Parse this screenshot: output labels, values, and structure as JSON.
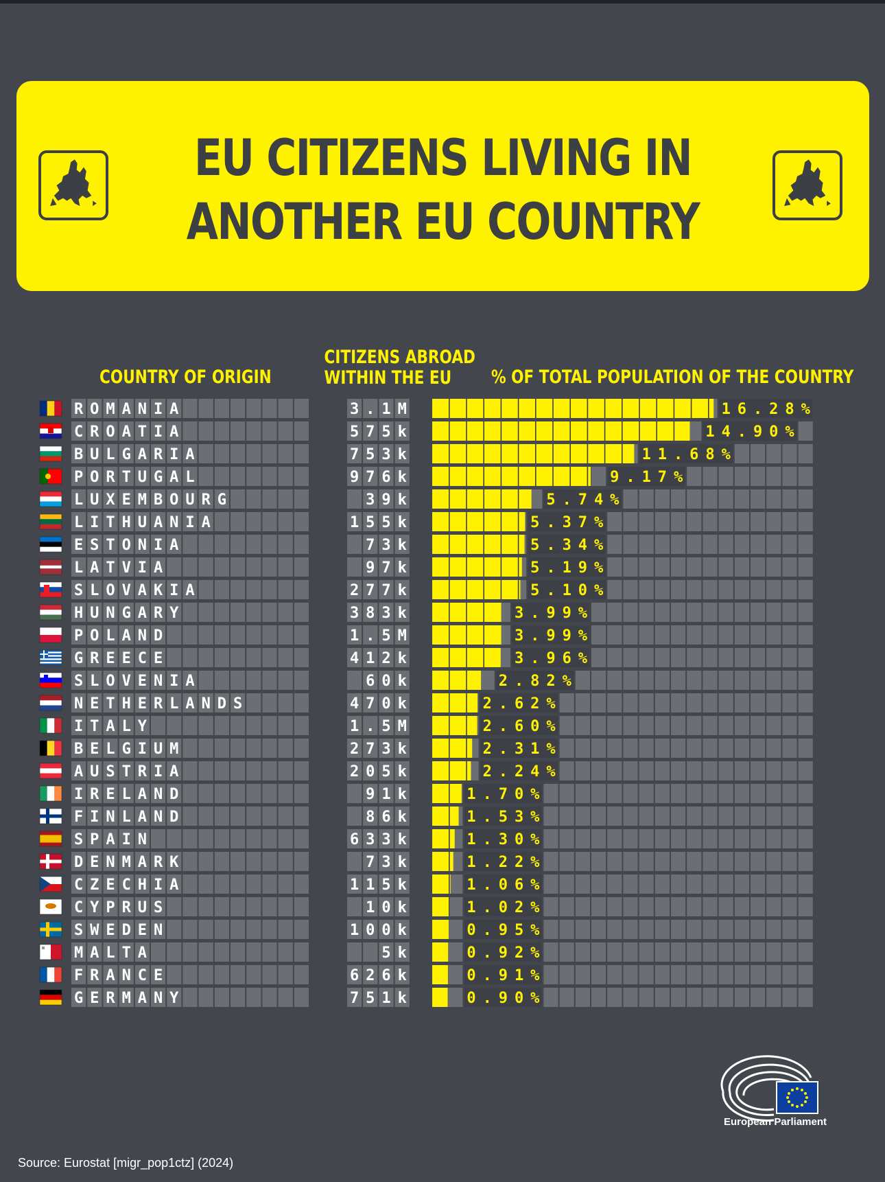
{
  "title": "EU CITIZENS LIVING IN ANOTHER EU COUNTRY",
  "headers": {
    "country": "COUNTRY OF ORIGIN",
    "citizens_line1": "CITIZENS ABROAD",
    "citizens_line2": "WITHIN THE EU",
    "percent": "% OF TOTAL POPULATION OF THE COUNTRY"
  },
  "source": "Source: Eurostat [migr_pop1ctz] (2024)",
  "logo_label": "European Parliament",
  "colors": {
    "background": "#43474d",
    "accent": "#fff200",
    "tile": "#6b6e73",
    "text_dark": "#3c3f44"
  },
  "chart_data": {
    "type": "bar",
    "orientation": "horizontal",
    "grid": true,
    "categories": [
      "ROMANIA",
      "CROATIA",
      "BULGARIA",
      "PORTUGAL",
      "LUXEMBOURG",
      "LITHUANIA",
      "ESTONIA",
      "LATVIA",
      "SLOVAKIA",
      "HUNGARY",
      "POLAND",
      "GREECE",
      "SLOVENIA",
      "NETHERLANDS",
      "ITALY",
      "BELGIUM",
      "AUSTRIA",
      "IRELAND",
      "FINLAND",
      "SPAIN",
      "DENMARK",
      "CZECHIA",
      "CYPRUS",
      "SWEDEN",
      "MALTA",
      "FRANCE",
      "GERMANY"
    ],
    "citizens_abroad": [
      "3.1M",
      "575k",
      "753k",
      "976k",
      "39k",
      "155k",
      "73k",
      "97k",
      "277k",
      "383k",
      "1.5M",
      "412k",
      "60k",
      "470k",
      "1.5M",
      "273k",
      "205k",
      "91k",
      "86k",
      "633k",
      "73k",
      "115k",
      "10k",
      "100k",
      "5k",
      "626k",
      "751k"
    ],
    "values": [
      16.28,
      14.9,
      11.68,
      9.17,
      5.74,
      5.37,
      5.34,
      5.19,
      5.1,
      3.99,
      3.99,
      3.96,
      2.82,
      2.62,
      2.6,
      2.31,
      2.24,
      1.7,
      1.53,
      1.3,
      1.22,
      1.06,
      1.02,
      0.95,
      0.92,
      0.91,
      0.9
    ],
    "value_labels": [
      "16.28%",
      "14.90%",
      "11.68%",
      "9.17%",
      "5.74%",
      "5.37%",
      "5.34%",
      "5.19%",
      "5.10%",
      "3.99%",
      "3.99%",
      "3.96%",
      "2.82%",
      "2.62%",
      "2.60%",
      "2.31%",
      "2.24%",
      "1.70%",
      "1.53%",
      "1.30%",
      "1.22%",
      "1.06%",
      "1.02%",
      "0.95%",
      "0.92%",
      "0.91%",
      "0.90%"
    ],
    "flags": [
      "flag-romania",
      "flag-croatia",
      "flag-bulgaria",
      "flag-portugal",
      "flag-luxembourg",
      "flag-lithuania",
      "flag-estonia",
      "flag-latvia",
      "flag-slovakia",
      "flag-hungary",
      "flag-poland",
      "flag-greece",
      "flag-slovenia",
      "flag-netherlands",
      "flag-italy",
      "flag-belgium",
      "flag-austria",
      "flag-ireland",
      "flag-finland",
      "flag-spain",
      "flag-denmark",
      "flag-czechia",
      "flag-cyprus",
      "flag-sweden",
      "flag-malta",
      "flag-france",
      "flag-germany"
    ]
  }
}
